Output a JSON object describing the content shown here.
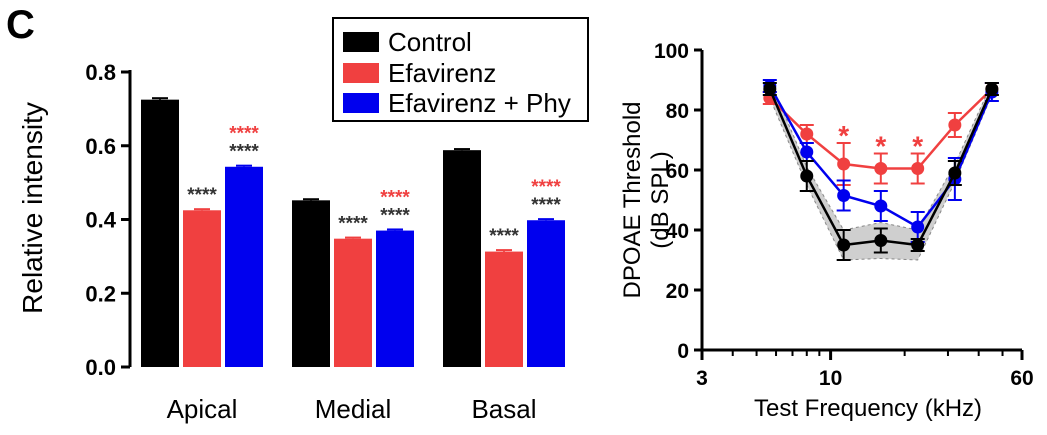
{
  "panel_label": "C",
  "legend": [
    {
      "label": "Control",
      "color": "#000000"
    },
    {
      "label": "Efavirenz",
      "color": "#f04040"
    },
    {
      "label": "Efavirenz + Phy",
      "color": "#0000ee"
    }
  ],
  "chart_data": [
    {
      "type": "bar",
      "ylabel": "Relative intensity",
      "ylim": [
        0,
        0.8
      ],
      "yticks": [
        "0.0",
        "0.2",
        "0.4",
        "0.6",
        "0.8"
      ],
      "categories": [
        "Apical",
        "Medial",
        "Basal"
      ],
      "series": [
        {
          "name": "Control",
          "color": "#000000",
          "values": [
            0.725,
            0.452,
            0.588
          ],
          "errors": [
            0.004,
            0.003,
            0.003
          ]
        },
        {
          "name": "Efavirenz",
          "color": "#f04040",
          "values": [
            0.425,
            0.348,
            0.313
          ],
          "errors": [
            0.003,
            0.003,
            0.004
          ]
        },
        {
          "name": "Efavirenz + Phy",
          "color": "#0000ee",
          "values": [
            0.543,
            0.37,
            0.398
          ],
          "errors": [
            0.003,
            0.003,
            0.003
          ]
        }
      ],
      "annotations": [
        {
          "category": 0,
          "series": 1,
          "lines": [
            {
              "text": "****",
              "color": "#333333"
            }
          ]
        },
        {
          "category": 0,
          "series": 2,
          "lines": [
            {
              "text": "****",
              "color": "#f04040"
            },
            {
              "text": "****",
              "color": "#333333"
            }
          ]
        },
        {
          "category": 1,
          "series": 1,
          "lines": [
            {
              "text": "****",
              "color": "#333333"
            }
          ]
        },
        {
          "category": 1,
          "series": 2,
          "lines": [
            {
              "text": "****",
              "color": "#f04040"
            },
            {
              "text": "****",
              "color": "#333333"
            }
          ]
        },
        {
          "category": 2,
          "series": 1,
          "lines": [
            {
              "text": "****",
              "color": "#333333"
            }
          ]
        },
        {
          "category": 2,
          "series": 2,
          "lines": [
            {
              "text": "****",
              "color": "#f04040"
            },
            {
              "text": "****",
              "color": "#333333"
            }
          ]
        }
      ]
    },
    {
      "type": "line",
      "xlabel": "Test Frequency (kHz)",
      "ylabel_line1": "DPOAE Threshold",
      "ylabel_line2": "(dB SPL)",
      "x_scale": "log",
      "xlim": [
        3,
        60
      ],
      "xticks": [
        "3",
        "10",
        "60"
      ],
      "xtick_values": [
        3,
        10,
        60
      ],
      "ylim": [
        0,
        100
      ],
      "yticks": [
        "0",
        "20",
        "40",
        "60",
        "80",
        "100"
      ],
      "x": [
        5.66,
        8,
        11.3,
        16,
        22.6,
        32,
        45.25
      ],
      "series": [
        {
          "name": "Control",
          "color": "#000000",
          "values": [
            87,
            58,
            35,
            36.5,
            35,
            59,
            87
          ],
          "errors": [
            2,
            5,
            5,
            4,
            2,
            4,
            2
          ],
          "band": [
            3,
            3,
            5,
            6,
            5,
            3,
            2
          ]
        },
        {
          "name": "Efavirenz",
          "color": "#f04040",
          "values": [
            84,
            72,
            62,
            60.5,
            60.5,
            75,
            87
          ],
          "errors": [
            2,
            3,
            7,
            5,
            5,
            4,
            2
          ]
        },
        {
          "name": "Efavirenz + Phy",
          "color": "#0000ee",
          "values": [
            88,
            66,
            51.5,
            48,
            41,
            57,
            86
          ],
          "errors": [
            2,
            3,
            5,
            5,
            5,
            7,
            3
          ]
        }
      ],
      "annotations": [
        {
          "x": 11.3,
          "text": "*",
          "color": "#f04040"
        },
        {
          "x": 16,
          "text": "*",
          "color": "#f04040"
        },
        {
          "x": 22.6,
          "text": "*",
          "color": "#f04040"
        }
      ]
    }
  ]
}
